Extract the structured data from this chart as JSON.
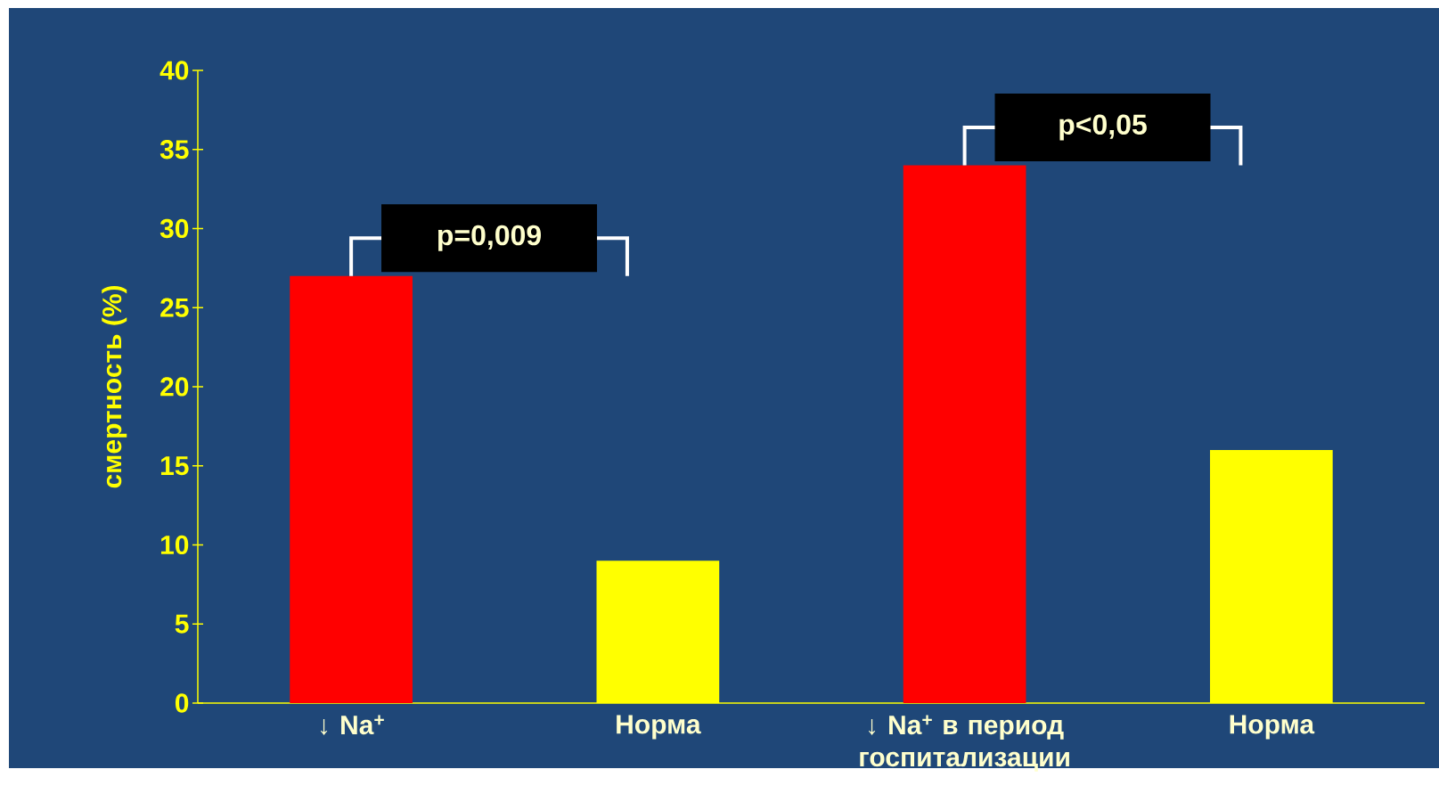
{
  "chart_data": {
    "type": "bar",
    "ylabel": "смертность (%)",
    "categories": [
      "↓ Na$^{+}$",
      "Норма",
      "↓ Na$^{+}$  в период госпитализации",
      "Норма"
    ],
    "values": [
      27,
      9,
      34,
      16
    ],
    "colors": [
      "#ff0000",
      "#ffff00",
      "#ff0000",
      "#ffff00"
    ],
    "ylim": [
      0,
      40
    ],
    "yticks": [
      0,
      5,
      10,
      15,
      20,
      25,
      30,
      35,
      40
    ],
    "annotations": [
      "p=0,009",
      "p<0,05"
    ]
  }
}
